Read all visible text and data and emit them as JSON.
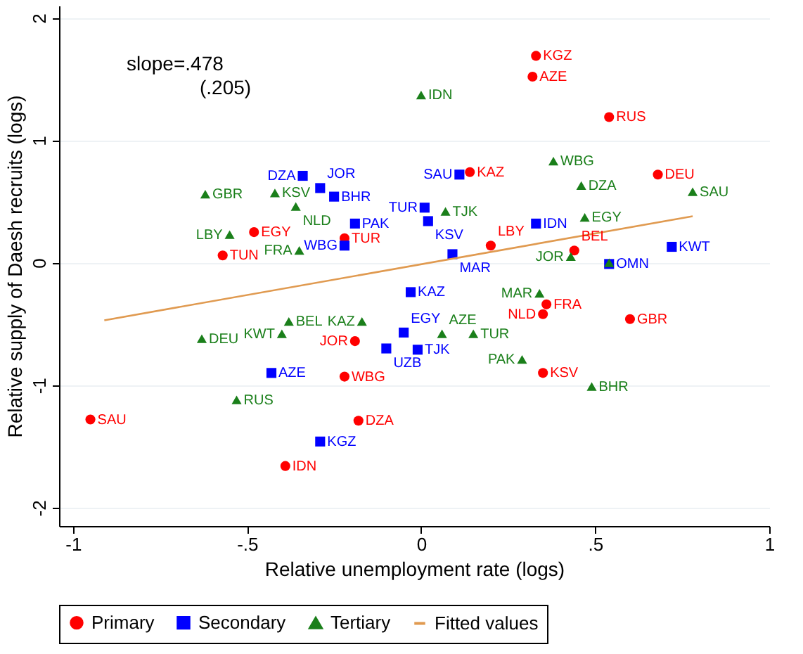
{
  "chart_data": {
    "type": "scatter",
    "xlabel": "Relative unemployment rate (logs)",
    "ylabel": "Relative supply of Daesh recruits (logs)",
    "xlim": [
      -1.04,
      1.0
    ],
    "ylim": [
      -2.15,
      2.1
    ],
    "xticks": [
      -1,
      {
        "value": -0.5,
        "label": "-.5"
      },
      0,
      {
        "value": 0.5,
        "label": ".5"
      },
      1
    ],
    "yticks": [
      -2,
      -1,
      0,
      1,
      2
    ],
    "grid": "y",
    "legend": "bottom",
    "series": [
      {
        "name": "Primary",
        "color": "#ff0000",
        "marker": "circle",
        "x": [
          0.33,
          0.32,
          0.54,
          0.68,
          0.14,
          0.2,
          0.44,
          0.35,
          0.36,
          0.6,
          0.35,
          -0.57,
          -0.48,
          -0.22,
          -0.19,
          -0.22,
          -0.18,
          -0.39,
          -0.95
        ],
        "values": [
          1.69,
          1.52,
          1.19,
          0.72,
          0.74,
          0.14,
          0.1,
          -0.42,
          -0.34,
          -0.46,
          -0.9,
          0.06,
          0.25,
          0.2,
          -0.64,
          -0.93,
          -1.29,
          -1.66,
          -1.28
        ]
      },
      {
        "name": "Secondary",
        "color": "#0000ff",
        "marker": "square",
        "x": [
          -0.34,
          -0.29,
          -0.25,
          -0.19,
          -0.22,
          0.11,
          0.01,
          0.02,
          0.33,
          0.09,
          0.72,
          0.54,
          -0.03,
          -0.05,
          -0.1,
          -0.01,
          -0.43,
          -0.29
        ],
        "values": [
          0.71,
          0.61,
          0.54,
          0.32,
          0.14,
          0.72,
          0.45,
          0.34,
          0.32,
          0.07,
          0.13,
          -0.01,
          -0.24,
          -0.57,
          -0.7,
          -0.71,
          -0.9,
          -1.46
        ]
      },
      {
        "name": "Tertiary",
        "color": "#1a7f1a",
        "marker": "triangle",
        "x": [
          0.0,
          0.38,
          0.46,
          0.78,
          0.47,
          0.07,
          0.43,
          0.54,
          -0.62,
          -0.42,
          -0.36,
          -0.35,
          -0.55,
          0.34,
          0.06,
          0.15,
          0.29,
          0.49,
          -0.17,
          -0.38,
          -0.4,
          -0.63,
          -0.53
        ],
        "values": [
          1.37,
          0.83,
          0.63,
          0.58,
          0.37,
          0.42,
          0.05,
          0.0,
          0.56,
          0.57,
          0.46,
          0.1,
          0.23,
          -0.25,
          -0.58,
          -0.58,
          -0.79,
          -1.01,
          -0.48,
          -0.48,
          -0.58,
          -0.62,
          -1.12
        ]
      },
      {
        "name": "Fitted values",
        "type": "line",
        "color": "#e09a50",
        "marker": "none",
        "x": [
          -0.91,
          0.78
        ],
        "values": [
          -0.47,
          0.38
        ]
      }
    ],
    "annotations": [
      "slope=.478",
      "(.205)",
      {
        "text": "KGZ",
        "x": 0.33,
        "y": 1.69
      },
      {
        "text": "AZE",
        "x": 0.32,
        "y": 1.52
      },
      {
        "text": "RUS",
        "x": 0.54,
        "y": 1.19
      },
      {
        "text": "DEU",
        "x": 0.68,
        "y": 0.72
      },
      {
        "text": "KAZ",
        "x": 0.14,
        "y": 0.74
      },
      {
        "text": "LBY",
        "x": 0.2,
        "y": 0.14
      },
      {
        "text": "BEL",
        "x": 0.44,
        "y": 0.1
      },
      {
        "text": "NLD",
        "x": 0.35,
        "y": -0.42
      },
      {
        "text": "FRA",
        "x": 0.36,
        "y": -0.34
      },
      {
        "text": "GBR",
        "x": 0.6,
        "y": -0.46
      },
      {
        "text": "KSV",
        "x": 0.35,
        "y": -0.9
      },
      {
        "text": "TUN",
        "x": -0.57,
        "y": 0.06
      },
      {
        "text": "EGY",
        "x": -0.48,
        "y": 0.25
      },
      {
        "text": "TUR",
        "x": -0.22,
        "y": 0.2
      },
      {
        "text": "JOR",
        "x": -0.19,
        "y": -0.64
      },
      {
        "text": "WBG",
        "x": -0.22,
        "y": -0.93
      },
      {
        "text": "DZA",
        "x": -0.18,
        "y": -1.29
      },
      {
        "text": "IDN",
        "x": -0.39,
        "y": -1.66
      },
      {
        "text": "SAU",
        "x": -0.95,
        "y": -1.28
      },
      {
        "text": "DZA",
        "x": -0.34,
        "y": 0.71
      },
      {
        "text": "JOR",
        "x": -0.29,
        "y": 0.61
      },
      {
        "text": "BHR",
        "x": -0.25,
        "y": 0.54
      },
      {
        "text": "PAK",
        "x": -0.19,
        "y": 0.32
      },
      {
        "text": "WBG",
        "x": -0.22,
        "y": 0.14
      },
      {
        "text": "SAU",
        "x": 0.11,
        "y": 0.72
      },
      {
        "text": "TUR",
        "x": 0.01,
        "y": 0.45
      },
      {
        "text": "KSV",
        "x": 0.02,
        "y": 0.34
      },
      {
        "text": "IDN",
        "x": 0.33,
        "y": 0.32
      },
      {
        "text": "MAR",
        "x": 0.09,
        "y": 0.07
      },
      {
        "text": "KWT",
        "x": 0.72,
        "y": 0.13
      },
      {
        "text": "OMN",
        "x": 0.54,
        "y": -0.01
      },
      {
        "text": "KAZ",
        "x": -0.03,
        "y": -0.24
      },
      {
        "text": "EGY",
        "x": -0.05,
        "y": -0.57
      },
      {
        "text": "UZB",
        "x": -0.1,
        "y": -0.7
      },
      {
        "text": "TJK",
        "x": -0.01,
        "y": -0.71
      },
      {
        "text": "AZE",
        "x": -0.43,
        "y": -0.9
      },
      {
        "text": "KGZ",
        "x": -0.29,
        "y": -1.46
      },
      {
        "text": "IDN",
        "x": 0.0,
        "y": 1.37
      },
      {
        "text": "WBG",
        "x": 0.38,
        "y": 0.83
      },
      {
        "text": "DZA",
        "x": 0.46,
        "y": 0.63
      },
      {
        "text": "SAU",
        "x": 0.78,
        "y": 0.58
      },
      {
        "text": "EGY",
        "x": 0.47,
        "y": 0.37
      },
      {
        "text": "TJK",
        "x": 0.07,
        "y": 0.42
      },
      {
        "text": "JOR",
        "x": 0.43,
        "y": 0.05
      },
      {
        "text": "GBR",
        "x": -0.62,
        "y": 0.56
      },
      {
        "text": "KSV",
        "x": -0.42,
        "y": 0.57
      },
      {
        "text": "NLD",
        "x": -0.36,
        "y": 0.46
      },
      {
        "text": "FRA",
        "x": -0.35,
        "y": 0.1
      },
      {
        "text": "LBY",
        "x": -0.55,
        "y": 0.23
      },
      {
        "text": "MAR",
        "x": 0.34,
        "y": -0.25
      },
      {
        "text": "AZE",
        "x": 0.06,
        "y": -0.58
      },
      {
        "text": "TUR",
        "x": 0.15,
        "y": -0.58
      },
      {
        "text": "PAK",
        "x": 0.29,
        "y": -0.79
      },
      {
        "text": "BHR",
        "x": 0.49,
        "y": -1.01
      },
      {
        "text": "KAZ",
        "x": -0.17,
        "y": -0.48
      },
      {
        "text": "BEL",
        "x": -0.38,
        "y": -0.48
      },
      {
        "text": "KWT",
        "x": -0.4,
        "y": -0.58
      },
      {
        "text": "DEU",
        "x": -0.63,
        "y": -0.62
      },
      {
        "text": "RUS",
        "x": -0.53,
        "y": -1.12
      }
    ]
  }
}
